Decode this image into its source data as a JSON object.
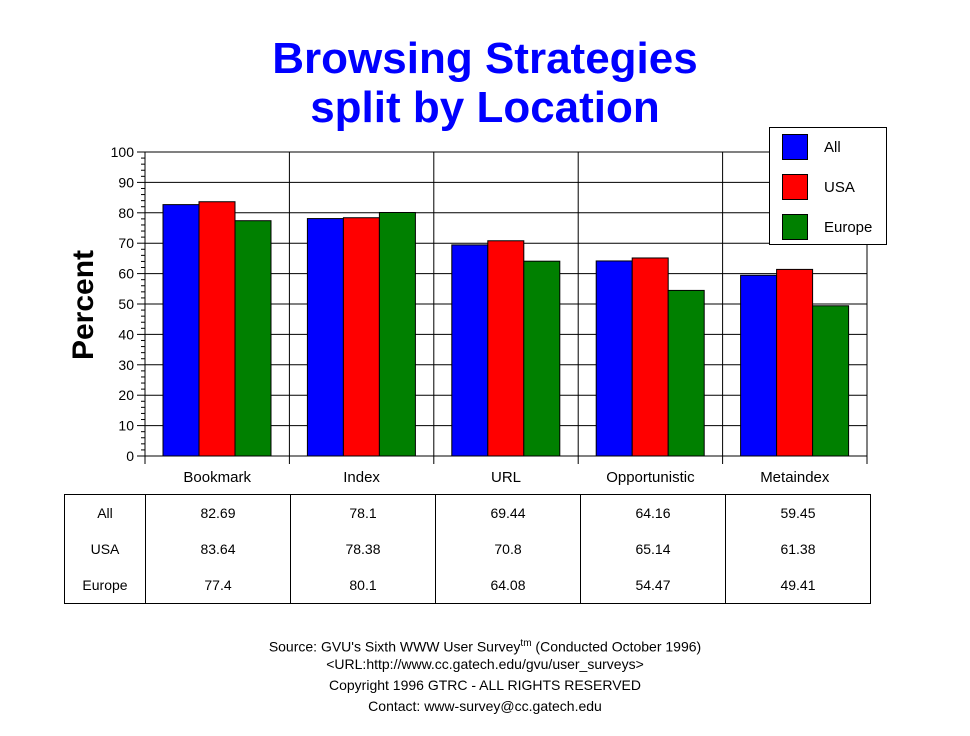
{
  "chart_data": {
    "type": "bar",
    "title": "Browsing Strategies",
    "subtitle": "split by Location",
    "ylabel": "Percent",
    "xlabel": "",
    "ylim": [
      0,
      100
    ],
    "yticks": [
      0,
      10,
      20,
      30,
      40,
      50,
      60,
      70,
      80,
      90,
      100
    ],
    "categories": [
      "Bookmark",
      "Index",
      "URL",
      "Opportunistic",
      "Metaindex"
    ],
    "series": [
      {
        "name": "All",
        "color": "#0000ff",
        "values": [
          82.69,
          78.1,
          69.44,
          64.16,
          59.45
        ],
        "labels": [
          "82.69",
          "78.1",
          "69.44",
          "64.16",
          "59.45"
        ]
      },
      {
        "name": "USA",
        "color": "#ff0000",
        "values": [
          83.64,
          78.38,
          70.8,
          65.14,
          61.38
        ],
        "labels": [
          "83.64",
          "78.38",
          "70.8",
          "65.14",
          "61.38"
        ]
      },
      {
        "name": "Europe",
        "color": "#008000",
        "values": [
          77.4,
          80.1,
          64.08,
          54.47,
          49.41
        ],
        "labels": [
          "77.4",
          "80.1",
          "64.08",
          "54.47",
          "49.41"
        ]
      }
    ],
    "legend_position": "top-right",
    "grid": true
  },
  "footer": {
    "source_prefix": "Source: GVU's Sixth WWW User Survey",
    "source_sup": "tm",
    "source_suffix": "  (Conducted October 1996)",
    "url": "<URL:http://www.cc.gatech.edu/gvu/user_surveys>",
    "copyright": "Copyright 1996 GTRC -  ALL RIGHTS RESERVED",
    "contact": "Contact: www-survey@cc.gatech.edu"
  }
}
